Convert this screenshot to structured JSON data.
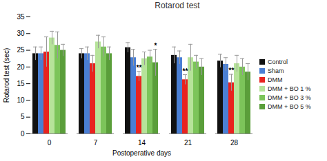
{
  "chart_data": {
    "type": "bar",
    "title": "Rotarod test",
    "x_label": "Postoperative days",
    "y_label": "Rotarod test (sec)",
    "categories": [
      0,
      7,
      14,
      21,
      28
    ],
    "ylim": [
      0,
      35
    ],
    "yticks": [
      0,
      5,
      10,
      15,
      20,
      25,
      30,
      35
    ],
    "grid": false,
    "legend": "right",
    "series": [
      {
        "name": "Control",
        "color": "#111111",
        "values": [
          24,
          24,
          25.8,
          23.5,
          21.8
        ],
        "errors": [
          2,
          1.5,
          1.5,
          2.5,
          2
        ],
        "significance": [
          null,
          null,
          null,
          null,
          null
        ]
      },
      {
        "name": "Sham",
        "color": "#4a7fd4",
        "values": [
          24,
          24,
          22.8,
          22.8,
          20.8
        ],
        "errors": [
          2,
          2,
          2.5,
          2,
          2
        ],
        "significance": [
          null,
          null,
          null,
          null,
          null
        ]
      },
      {
        "name": "DMM",
        "color": "#e8231f",
        "values": [
          24.5,
          21,
          17.2,
          16.2,
          15.3
        ],
        "errors": [
          4.5,
          2.5,
          1.5,
          1.5,
          2.5
        ],
        "significance": [
          null,
          null,
          "**",
          "**",
          "**"
        ]
      },
      {
        "name": "DMM + BO 1 %",
        "color": "#b6e39a",
        "values": [
          28.7,
          27.5,
          22.5,
          22.8,
          21
        ],
        "errors": [
          2,
          2,
          2,
          4,
          2.5
        ],
        "significance": [
          null,
          null,
          null,
          null,
          null
        ]
      },
      {
        "name": "DMM + BO 3 %",
        "color": "#7cc45a",
        "values": [
          26.5,
          26,
          23,
          21.5,
          20
        ],
        "errors": [
          4,
          3,
          2,
          2,
          2.5
        ],
        "significance": [
          null,
          null,
          null,
          null,
          null
        ]
      },
      {
        "name": "DMM + BO 5 %",
        "color": "#5a9e3a",
        "values": [
          25,
          24,
          21.3,
          20,
          18.5
        ],
        "errors": [
          1.8,
          2,
          4,
          2.5,
          2.5
        ],
        "significance": [
          null,
          null,
          "*",
          null,
          null
        ]
      }
    ]
  }
}
